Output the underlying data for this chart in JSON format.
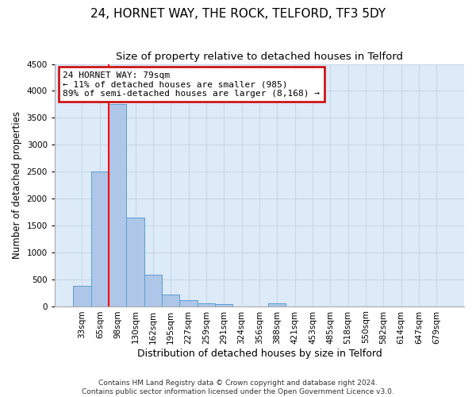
{
  "title": "24, HORNET WAY, THE ROCK, TELFORD, TF3 5DY",
  "subtitle": "Size of property relative to detached houses in Telford",
  "xlabel": "Distribution of detached houses by size in Telford",
  "ylabel": "Number of detached properties",
  "categories": [
    "33sqm",
    "65sqm",
    "98sqm",
    "130sqm",
    "162sqm",
    "195sqm",
    "227sqm",
    "259sqm",
    "291sqm",
    "324sqm",
    "356sqm",
    "388sqm",
    "421sqm",
    "453sqm",
    "485sqm",
    "518sqm",
    "550sqm",
    "582sqm",
    "614sqm",
    "647sqm",
    "679sqm"
  ],
  "values": [
    370,
    2500,
    3750,
    1650,
    590,
    220,
    105,
    60,
    40,
    0,
    0,
    50,
    0,
    0,
    0,
    0,
    0,
    0,
    0,
    0,
    0
  ],
  "bar_color": "#aec6e8",
  "bar_edge_color": "#5a9fd4",
  "grid_color": "#c8d8e8",
  "background_color": "#ddeaf7",
  "property_line_x": 1.5,
  "annotation_text": "24 HORNET WAY: 79sqm\n← 11% of detached houses are smaller (985)\n89% of semi-detached houses are larger (8,168) →",
  "annotation_box_color": "#cc0000",
  "ylim": [
    0,
    4500
  ],
  "yticks": [
    0,
    500,
    1000,
    1500,
    2000,
    2500,
    3000,
    3500,
    4000,
    4500
  ],
  "footer": "Contains HM Land Registry data © Crown copyright and database right 2024.\nContains public sector information licensed under the Open Government Licence v3.0.",
  "title_fontsize": 11,
  "subtitle_fontsize": 9.5,
  "xlabel_fontsize": 9,
  "ylabel_fontsize": 8.5,
  "tick_fontsize": 7.5,
  "annotation_fontsize": 8,
  "footer_fontsize": 6.5
}
